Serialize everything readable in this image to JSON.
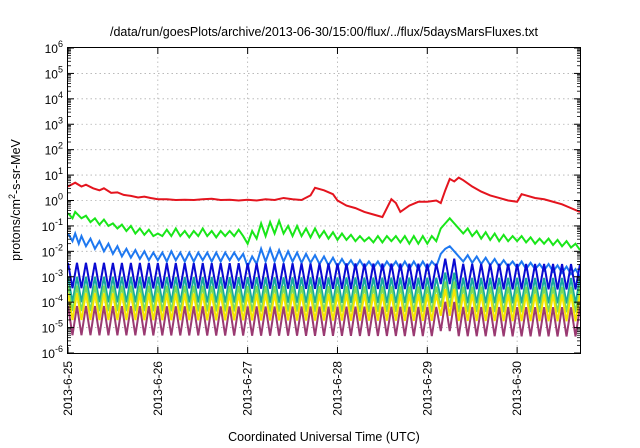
{
  "chart_data": {
    "type": "line",
    "title": "/data/run/goesPlots/archive/2013-06-30/15:00/flux/../flux/5daysMarsFluxes.txt",
    "xlabel": "Coordinated Universal Time (UTC)",
    "ylabel": {
      "prefix": "protons/cm",
      "sup": "2",
      "suffix": "-s-sr-MeV"
    },
    "yscale": "log",
    "ylim_exp": [
      -6,
      6
    ],
    "xlim_days": [
      0,
      5.7
    ],
    "grid": true,
    "x_ticks": [
      "2013-6-25",
      "2013-6-26",
      "2013-6-27",
      "2013-6-28",
      "2013-6-29",
      "2013-6-30"
    ],
    "y_ticks": [
      {
        "base": "10",
        "exp": "-6"
      },
      {
        "base": "10",
        "exp": "-5"
      },
      {
        "base": "10",
        "exp": "-4"
      },
      {
        "base": "10",
        "exp": "-3"
      },
      {
        "base": "10",
        "exp": "-2"
      },
      {
        "base": "10",
        "exp": "-1"
      },
      {
        "base": "10",
        "exp": "0"
      },
      {
        "base": "10",
        "exp": "1"
      },
      {
        "base": "10",
        "exp": "2"
      },
      {
        "base": "10",
        "exp": "3"
      },
      {
        "base": "10",
        "exp": "4"
      },
      {
        "base": "10",
        "exp": "5"
      },
      {
        "base": "10",
        "exp": "6"
      }
    ],
    "series": [
      {
        "color": "#e4141e",
        "values": [
          [
            0.0,
            0.55
          ],
          [
            0.08,
            0.7
          ],
          [
            0.15,
            0.55
          ],
          [
            0.2,
            0.62
          ],
          [
            0.28,
            0.48
          ],
          [
            0.35,
            0.4
          ],
          [
            0.4,
            0.48
          ],
          [
            0.48,
            0.3
          ],
          [
            0.55,
            0.32
          ],
          [
            0.62,
            0.22
          ],
          [
            0.7,
            0.18
          ],
          [
            0.78,
            0.12
          ],
          [
            0.85,
            0.15
          ],
          [
            0.92,
            0.1
          ],
          [
            1.0,
            0.05
          ],
          [
            1.1,
            0.05
          ],
          [
            1.2,
            0.02
          ],
          [
            1.3,
            0.03
          ],
          [
            1.4,
            0.02
          ],
          [
            1.5,
            0.05
          ],
          [
            1.6,
            0.07
          ],
          [
            1.7,
            0.02
          ],
          [
            1.8,
            0.03
          ],
          [
            1.9,
            0.0
          ],
          [
            2.0,
            0.03
          ],
          [
            2.1,
            0.0
          ],
          [
            2.2,
            0.05
          ],
          [
            2.3,
            0.02
          ],
          [
            2.4,
            0.1
          ],
          [
            2.5,
            0.05
          ],
          [
            2.6,
            0.02
          ],
          [
            2.7,
            0.2
          ],
          [
            2.75,
            0.5
          ],
          [
            2.85,
            0.4
          ],
          [
            2.95,
            0.25
          ],
          [
            3.0,
            0.0
          ],
          [
            3.1,
            -0.2
          ],
          [
            3.2,
            -0.3
          ],
          [
            3.3,
            -0.45
          ],
          [
            3.4,
            -0.55
          ],
          [
            3.5,
            -0.65
          ],
          [
            3.6,
            0.05
          ],
          [
            3.65,
            -0.1
          ],
          [
            3.7,
            -0.45
          ],
          [
            3.8,
            -0.2
          ],
          [
            3.9,
            -0.05
          ],
          [
            4.0,
            -0.05
          ],
          [
            4.1,
            0.0
          ],
          [
            4.15,
            -0.1
          ],
          [
            4.2,
            0.4
          ],
          [
            4.25,
            0.85
          ],
          [
            4.3,
            0.75
          ],
          [
            4.35,
            0.9
          ],
          [
            4.4,
            0.8
          ],
          [
            4.5,
            0.55
          ],
          [
            4.6,
            0.35
          ],
          [
            4.7,
            0.2
          ],
          [
            4.8,
            0.1
          ],
          [
            4.9,
            0.0
          ],
          [
            5.0,
            -0.05
          ],
          [
            5.05,
            0.25
          ],
          [
            5.1,
            0.2
          ],
          [
            5.2,
            0.1
          ],
          [
            5.3,
            0.05
          ],
          [
            5.4,
            -0.05
          ],
          [
            5.5,
            -0.15
          ],
          [
            5.6,
            -0.3
          ],
          [
            5.7,
            -0.45
          ]
        ]
      },
      {
        "color": "#19e619",
        "values": [
          [
            0.0,
            -0.5
          ],
          [
            0.05,
            -0.7
          ],
          [
            0.08,
            -0.45
          ],
          [
            0.15,
            -0.7
          ],
          [
            0.2,
            -0.6
          ],
          [
            0.25,
            -0.85
          ],
          [
            0.3,
            -0.7
          ],
          [
            0.35,
            -0.95
          ],
          [
            0.4,
            -0.75
          ],
          [
            0.45,
            -1.0
          ],
          [
            0.5,
            -0.9
          ],
          [
            0.55,
            -1.1
          ],
          [
            0.6,
            -0.95
          ],
          [
            0.65,
            -1.2
          ],
          [
            0.7,
            -1.0
          ],
          [
            0.75,
            -1.3
          ],
          [
            0.8,
            -1.1
          ],
          [
            0.85,
            -1.35
          ],
          [
            0.9,
            -1.15
          ],
          [
            0.95,
            -1.4
          ],
          [
            1.0,
            -1.3
          ],
          [
            1.05,
            -1.4
          ],
          [
            1.1,
            -1.15
          ],
          [
            1.15,
            -1.4
          ],
          [
            1.2,
            -1.1
          ],
          [
            1.25,
            -1.4
          ],
          [
            1.3,
            -1.2
          ],
          [
            1.35,
            -1.45
          ],
          [
            1.4,
            -1.2
          ],
          [
            1.45,
            -1.4
          ],
          [
            1.5,
            -1.1
          ],
          [
            1.55,
            -1.4
          ],
          [
            1.6,
            -1.2
          ],
          [
            1.65,
            -1.45
          ],
          [
            1.7,
            -1.2
          ],
          [
            1.75,
            -1.4
          ],
          [
            1.8,
            -1.2
          ],
          [
            1.85,
            -1.4
          ],
          [
            1.9,
            -1.15
          ],
          [
            1.95,
            -1.4
          ],
          [
            2.0,
            -1.7
          ],
          [
            2.05,
            -1.2
          ],
          [
            2.1,
            -1.5
          ],
          [
            2.15,
            -0.9
          ],
          [
            2.2,
            -1.4
          ],
          [
            2.25,
            -0.85
          ],
          [
            2.3,
            -1.3
          ],
          [
            2.35,
            -0.8
          ],
          [
            2.4,
            -1.3
          ],
          [
            2.45,
            -1.0
          ],
          [
            2.5,
            -1.4
          ],
          [
            2.55,
            -1.0
          ],
          [
            2.6,
            -1.4
          ],
          [
            2.65,
            -1.1
          ],
          [
            2.7,
            -1.45
          ],
          [
            2.75,
            -1.1
          ],
          [
            2.8,
            -1.45
          ],
          [
            2.85,
            -1.2
          ],
          [
            2.9,
            -1.5
          ],
          [
            2.95,
            -1.25
          ],
          [
            3.0,
            -1.55
          ],
          [
            3.05,
            -1.3
          ],
          [
            3.1,
            -1.55
          ],
          [
            3.15,
            -1.35
          ],
          [
            3.2,
            -1.6
          ],
          [
            3.25,
            -1.4
          ],
          [
            3.3,
            -1.6
          ],
          [
            3.35,
            -1.45
          ],
          [
            3.4,
            -1.65
          ],
          [
            3.45,
            -1.4
          ],
          [
            3.5,
            -1.65
          ],
          [
            3.55,
            -1.4
          ],
          [
            3.6,
            -1.6
          ],
          [
            3.65,
            -1.4
          ],
          [
            3.7,
            -1.65
          ],
          [
            3.75,
            -1.4
          ],
          [
            3.8,
            -1.7
          ],
          [
            3.85,
            -1.4
          ],
          [
            3.9,
            -1.7
          ],
          [
            3.95,
            -1.4
          ],
          [
            4.0,
            -1.7
          ],
          [
            4.05,
            -1.4
          ],
          [
            4.1,
            -1.6
          ],
          [
            4.15,
            -1.1
          ],
          [
            4.2,
            -0.9
          ],
          [
            4.25,
            -0.7
          ],
          [
            4.3,
            -0.9
          ],
          [
            4.35,
            -1.1
          ],
          [
            4.4,
            -1.3
          ],
          [
            4.45,
            -1.1
          ],
          [
            4.5,
            -1.4
          ],
          [
            4.55,
            -1.2
          ],
          [
            4.6,
            -1.5
          ],
          [
            4.65,
            -1.25
          ],
          [
            4.7,
            -1.55
          ],
          [
            4.75,
            -1.3
          ],
          [
            4.8,
            -1.6
          ],
          [
            4.85,
            -1.35
          ],
          [
            4.9,
            -1.6
          ],
          [
            4.95,
            -1.4
          ],
          [
            5.0,
            -1.6
          ],
          [
            5.05,
            -1.4
          ],
          [
            5.1,
            -1.65
          ],
          [
            5.15,
            -1.45
          ],
          [
            5.2,
            -1.7
          ],
          [
            5.25,
            -1.5
          ],
          [
            5.3,
            -1.7
          ],
          [
            5.35,
            -1.5
          ],
          [
            5.4,
            -1.75
          ],
          [
            5.45,
            -1.55
          ],
          [
            5.5,
            -1.8
          ],
          [
            5.55,
            -1.6
          ],
          [
            5.6,
            -1.85
          ],
          [
            5.65,
            -1.7
          ],
          [
            5.7,
            -1.95
          ]
        ]
      },
      {
        "color": "#1e78f0",
        "values": [
          [
            0.0,
            -1.3
          ],
          [
            0.05,
            -1.6
          ],
          [
            0.08,
            -1.3
          ],
          [
            0.12,
            -1.7
          ],
          [
            0.15,
            -1.4
          ],
          [
            0.2,
            -1.8
          ],
          [
            0.25,
            -1.5
          ],
          [
            0.3,
            -1.9
          ],
          [
            0.35,
            -1.6
          ],
          [
            0.4,
            -2.0
          ],
          [
            0.45,
            -1.7
          ],
          [
            0.5,
            -2.1
          ],
          [
            0.55,
            -1.8
          ],
          [
            0.6,
            -2.2
          ],
          [
            0.65,
            -1.9
          ],
          [
            0.7,
            -2.25
          ],
          [
            0.75,
            -1.95
          ],
          [
            0.8,
            -2.3
          ],
          [
            0.85,
            -2.0
          ],
          [
            0.9,
            -2.35
          ],
          [
            0.95,
            -2.05
          ],
          [
            1.0,
            -2.35
          ],
          [
            1.05,
            -2.05
          ],
          [
            1.1,
            -2.4
          ],
          [
            1.15,
            -2.0
          ],
          [
            1.2,
            -2.35
          ],
          [
            1.25,
            -2.05
          ],
          [
            1.3,
            -2.4
          ],
          [
            1.35,
            -2.05
          ],
          [
            1.4,
            -2.4
          ],
          [
            1.45,
            -2.05
          ],
          [
            1.5,
            -2.35
          ],
          [
            1.55,
            -2.05
          ],
          [
            1.6,
            -2.4
          ],
          [
            1.65,
            -2.05
          ],
          [
            1.7,
            -2.4
          ],
          [
            1.75,
            -2.05
          ],
          [
            1.8,
            -2.35
          ],
          [
            1.85,
            -2.05
          ],
          [
            1.9,
            -2.35
          ],
          [
            1.95,
            -2.1
          ],
          [
            2.0,
            -2.6
          ],
          [
            2.05,
            -2.2
          ],
          [
            2.1,
            -2.5
          ],
          [
            2.15,
            -1.9
          ],
          [
            2.2,
            -2.4
          ],
          [
            2.25,
            -1.9
          ],
          [
            2.3,
            -2.4
          ],
          [
            2.35,
            -1.95
          ],
          [
            2.4,
            -2.4
          ],
          [
            2.45,
            -2.0
          ],
          [
            2.5,
            -2.4
          ],
          [
            2.55,
            -2.05
          ],
          [
            2.6,
            -2.45
          ],
          [
            2.65,
            -2.1
          ],
          [
            2.7,
            -2.45
          ],
          [
            2.75,
            -2.15
          ],
          [
            2.8,
            -2.5
          ],
          [
            2.85,
            -2.2
          ],
          [
            2.9,
            -2.55
          ],
          [
            2.95,
            -2.25
          ],
          [
            3.0,
            -2.6
          ],
          [
            3.05,
            -2.3
          ],
          [
            3.1,
            -2.6
          ],
          [
            3.15,
            -2.35
          ],
          [
            3.2,
            -2.65
          ],
          [
            3.25,
            -2.35
          ],
          [
            3.3,
            -2.65
          ],
          [
            3.35,
            -2.4
          ],
          [
            3.4,
            -2.65
          ],
          [
            3.45,
            -2.4
          ],
          [
            3.5,
            -2.7
          ],
          [
            3.55,
            -2.4
          ],
          [
            3.6,
            -2.65
          ],
          [
            3.65,
            -2.4
          ],
          [
            3.7,
            -2.7
          ],
          [
            3.75,
            -2.4
          ],
          [
            3.8,
            -2.7
          ],
          [
            3.85,
            -2.4
          ],
          [
            3.9,
            -2.7
          ],
          [
            3.95,
            -2.4
          ],
          [
            4.0,
            -2.7
          ],
          [
            4.05,
            -2.4
          ],
          [
            4.1,
            -2.6
          ],
          [
            4.15,
            -2.1
          ],
          [
            4.2,
            -1.9
          ],
          [
            4.25,
            -1.8
          ],
          [
            4.3,
            -2.0
          ],
          [
            4.35,
            -2.2
          ],
          [
            4.4,
            -2.4
          ],
          [
            4.45,
            -2.15
          ],
          [
            4.5,
            -2.45
          ],
          [
            4.55,
            -2.2
          ],
          [
            4.6,
            -2.5
          ],
          [
            4.65,
            -2.25
          ],
          [
            4.7,
            -2.55
          ],
          [
            4.75,
            -2.3
          ],
          [
            4.8,
            -2.6
          ],
          [
            4.85,
            -2.35
          ],
          [
            4.9,
            -2.6
          ],
          [
            4.95,
            -2.4
          ],
          [
            5.0,
            -2.65
          ],
          [
            5.05,
            -2.4
          ],
          [
            5.1,
            -2.7
          ],
          [
            5.15,
            -2.45
          ],
          [
            5.2,
            -2.7
          ],
          [
            5.25,
            -2.5
          ],
          [
            5.3,
            -2.75
          ],
          [
            5.35,
            -2.5
          ],
          [
            5.4,
            -2.8
          ],
          [
            5.45,
            -2.55
          ],
          [
            5.5,
            -2.85
          ],
          [
            5.55,
            -2.6
          ],
          [
            5.6,
            -2.9
          ],
          [
            5.65,
            -2.7
          ],
          [
            5.7,
            -3.0
          ]
        ]
      },
      {
        "color": "#0a0ad2",
        "amp": 1.0,
        "base": -2.45,
        "drift": -0.05
      },
      {
        "color": "#16a8a0",
        "amp": 1.0,
        "base": -3.0,
        "drift": -0.05
      },
      {
        "color": "#78dc5a",
        "amp": 1.0,
        "base": -3.35,
        "drift": -0.05
      },
      {
        "color": "#f5e600",
        "amp": 1.05,
        "base": -3.65,
        "drift": -0.05
      },
      {
        "color": "#9a3a72",
        "amp": 1.15,
        "base": -4.15,
        "drift": -0.05
      }
    ]
  }
}
